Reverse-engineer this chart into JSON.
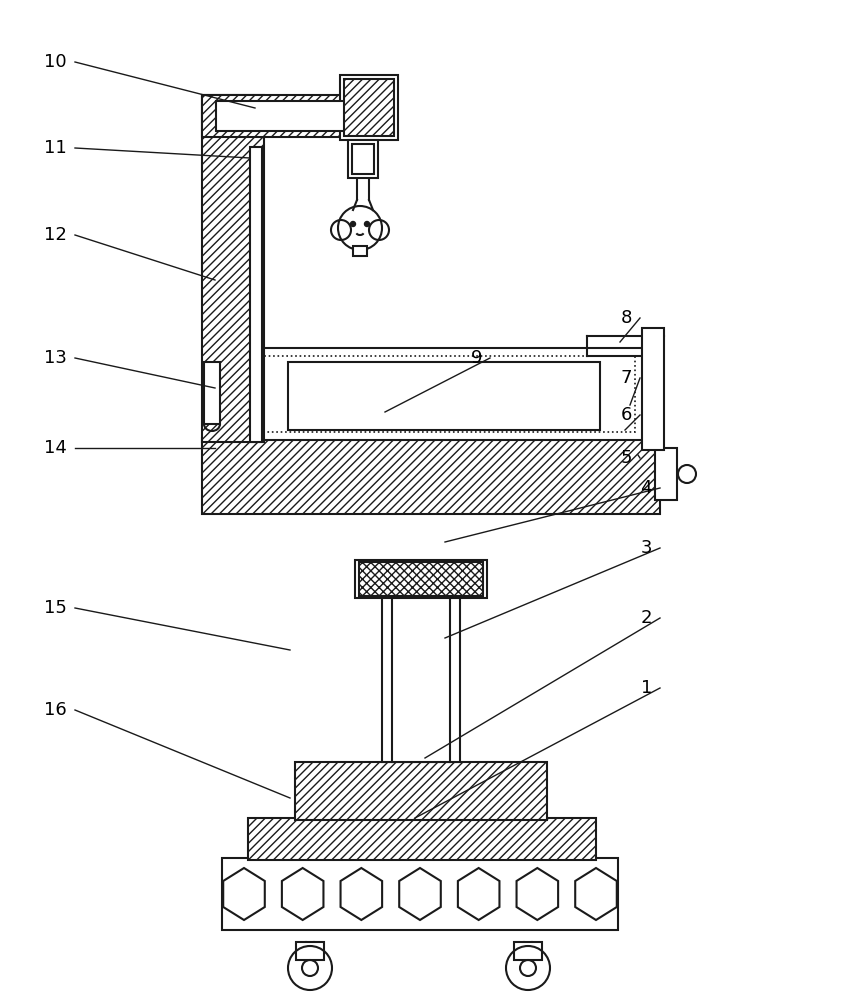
{
  "bg_color": "#ffffff",
  "lc": "#1a1a1a",
  "lw": 1.5,
  "figsize": [
    8.55,
    10.0
  ],
  "dpi": 100,
  "labels": [
    [
      "10",
      75,
      62,
      255,
      108
    ],
    [
      "11",
      75,
      148,
      250,
      158
    ],
    [
      "12",
      75,
      235,
      215,
      280
    ],
    [
      "13",
      75,
      358,
      215,
      388
    ],
    [
      "14",
      75,
      448,
      215,
      448
    ],
    [
      "15",
      75,
      608,
      290,
      650
    ],
    [
      "16",
      75,
      710,
      290,
      798
    ],
    [
      "9",
      490,
      358,
      385,
      412
    ],
    [
      "8",
      640,
      318,
      620,
      342
    ],
    [
      "7",
      640,
      378,
      630,
      405
    ],
    [
      "6",
      640,
      415,
      625,
      430
    ],
    [
      "5",
      640,
      458,
      638,
      455
    ],
    [
      "4",
      660,
      488,
      445,
      542
    ],
    [
      "3",
      660,
      548,
      445,
      638
    ],
    [
      "2",
      660,
      618,
      425,
      758
    ],
    [
      "1",
      660,
      688,
      415,
      818
    ]
  ]
}
